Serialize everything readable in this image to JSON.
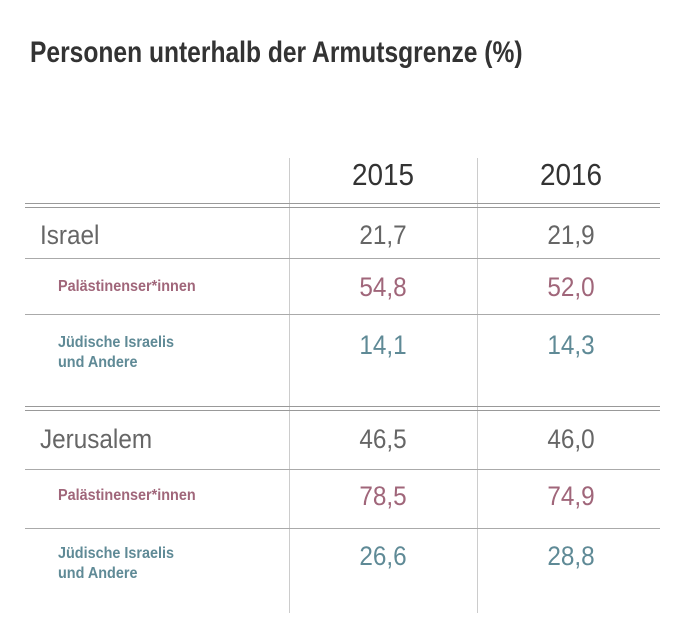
{
  "title": "Personen unterhalb der Armutsgrenze (%)",
  "table": {
    "columns": [
      "2015",
      "2016"
    ],
    "rows": [
      {
        "label": "Israel",
        "kind": "main",
        "values": [
          "21,7",
          "21,9"
        ]
      },
      {
        "label": "Palästinenser*innen",
        "kind": "pal",
        "values": [
          "54,8",
          "52,0"
        ]
      },
      {
        "label": "Jüdische Israelis\nund Andere",
        "kind": "jew",
        "values": [
          "14,1",
          "14,3"
        ]
      },
      {
        "label": "Jerusalem",
        "kind": "main",
        "values": [
          "46,5",
          "46,0"
        ]
      },
      {
        "label": "Palästinenser*innen",
        "kind": "pal",
        "values": [
          "78,5",
          "74,9"
        ]
      },
      {
        "label": "Jüdische Israelis\nund Andere",
        "kind": "jew",
        "values": [
          "26,6",
          "28,8"
        ]
      }
    ]
  }
}
